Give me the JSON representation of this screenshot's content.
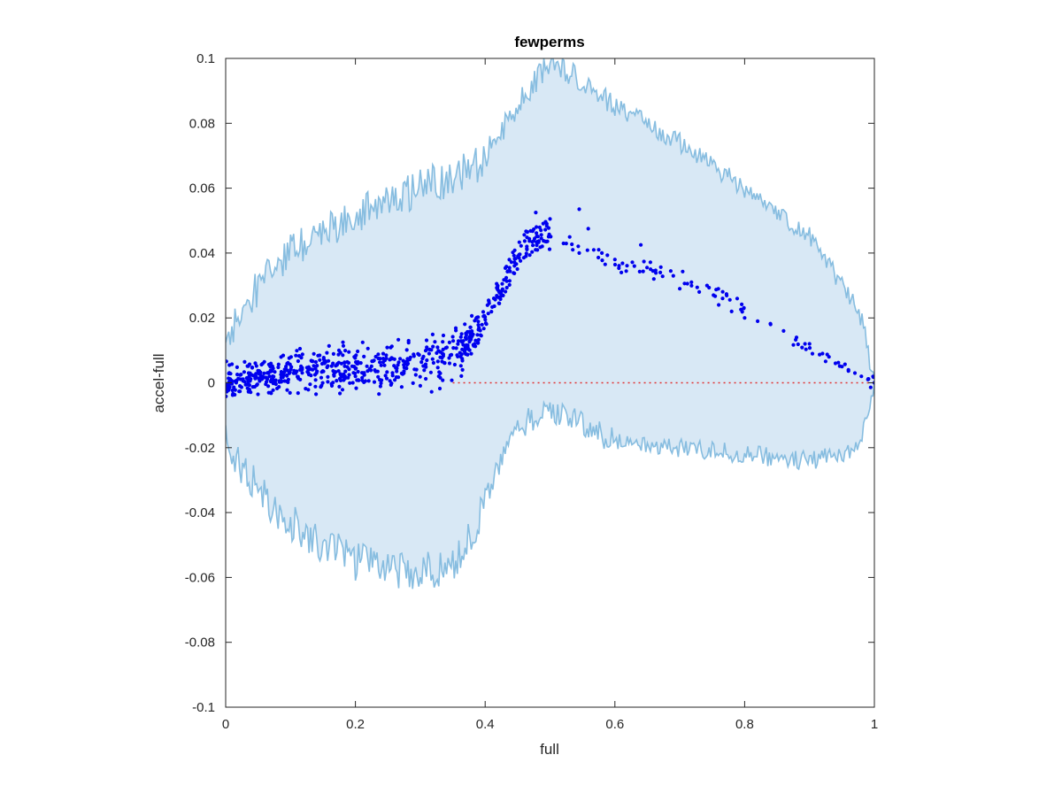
{
  "chart_data": {
    "type": "scatter",
    "title": "fewperms",
    "xlabel": "full",
    "ylabel": "accel-full",
    "xlim": [
      0,
      1
    ],
    "ylim": [
      -0.1,
      0.1
    ],
    "xticks": [
      0,
      0.2,
      0.4,
      0.6,
      0.8,
      1
    ],
    "xtick_labels": [
      "0",
      "0.2",
      "0.4",
      "0.6",
      "0.8",
      "1"
    ],
    "yticks": [
      0.1,
      0.08,
      0.06,
      0.04,
      0.02,
      0,
      -0.02,
      -0.04,
      -0.06,
      -0.08,
      -0.1
    ],
    "ytick_labels": [
      "0.1",
      "0.08",
      "0.06",
      "0.04",
      "0.02",
      "0",
      "-0.02",
      "-0.04",
      "-0.06",
      "-0.08",
      "-0.1"
    ],
    "grid": false,
    "colors": {
      "band_fill": "#d8e8f5",
      "band_edge": "#87bde0",
      "points": "#0000ee",
      "reference_line": "#e03030",
      "axes": "#262626"
    },
    "envelope": {
      "x": [
        0.0,
        0.02,
        0.05,
        0.08,
        0.1,
        0.15,
        0.2,
        0.25,
        0.3,
        0.33,
        0.35,
        0.38,
        0.4,
        0.42,
        0.45,
        0.48,
        0.5,
        0.52,
        0.55,
        0.58,
        0.6,
        0.65,
        0.7,
        0.75,
        0.8,
        0.85,
        0.9,
        0.95,
        0.98,
        1.0
      ],
      "upper": [
        0.012,
        0.02,
        0.029,
        0.036,
        0.04,
        0.046,
        0.052,
        0.056,
        0.06,
        0.062,
        0.063,
        0.066,
        0.07,
        0.076,
        0.085,
        0.094,
        0.099,
        0.097,
        0.093,
        0.088,
        0.085,
        0.08,
        0.074,
        0.067,
        0.06,
        0.052,
        0.045,
        0.03,
        0.02,
        0.0
      ],
      "lower": [
        -0.018,
        -0.025,
        -0.033,
        -0.039,
        -0.043,
        -0.05,
        -0.055,
        -0.057,
        -0.058,
        -0.057,
        -0.055,
        -0.048,
        -0.036,
        -0.025,
        -0.014,
        -0.01,
        -0.009,
        -0.01,
        -0.013,
        -0.016,
        -0.018,
        -0.019,
        -0.02,
        -0.021,
        -0.022,
        -0.023,
        -0.024,
        -0.022,
        -0.018,
        0.0
      ]
    },
    "reference_line": {
      "y": 0,
      "x_start": 0.35,
      "x_end": 1
    },
    "series": [
      {
        "trend": {
          "x": [
            0.0,
            0.05,
            0.1,
            0.15,
            0.2,
            0.25,
            0.3,
            0.33,
            0.35,
            0.37,
            0.39,
            0.41,
            0.43,
            0.45,
            0.47,
            0.49,
            0.51,
            0.53,
            0.55,
            0.58,
            0.6,
            0.63,
            0.66,
            0.7,
            0.73,
            0.76,
            0.8,
            0.84,
            0.88,
            0.92,
            0.95,
            0.98,
            1.0
          ],
          "y": [
            0.0,
            0.002,
            0.003,
            0.004,
            0.005,
            0.005,
            0.006,
            0.007,
            0.009,
            0.012,
            0.017,
            0.024,
            0.032,
            0.039,
            0.044,
            0.046,
            0.045,
            0.043,
            0.041,
            0.039,
            0.037,
            0.036,
            0.035,
            0.033,
            0.031,
            0.028,
            0.023,
            0.018,
            0.013,
            0.008,
            0.005,
            0.002,
            0.0
          ]
        },
        "points": [
          [
            0.545,
            0.0535
          ],
          [
            0.478,
            0.0525
          ],
          [
            0.5,
            0.0505
          ],
          [
            0.559,
            0.0475
          ],
          [
            0.495,
            0.049
          ],
          [
            0.535,
            0.041
          ],
          [
            0.545,
            0.04
          ],
          [
            0.575,
            0.041
          ],
          [
            0.58,
            0.04
          ],
          [
            0.585,
            0.0365
          ],
          [
            0.6,
            0.038
          ],
          [
            0.61,
            0.034
          ],
          [
            0.63,
            0.036
          ],
          [
            0.64,
            0.0425
          ],
          [
            0.655,
            0.035
          ],
          [
            0.66,
            0.032
          ],
          [
            0.67,
            0.034
          ],
          [
            0.69,
            0.033
          ],
          [
            0.7,
            0.029
          ],
          [
            0.718,
            0.031
          ],
          [
            0.73,
            0.028
          ],
          [
            0.742,
            0.03
          ],
          [
            0.752,
            0.027
          ],
          [
            0.76,
            0.024
          ],
          [
            0.78,
            0.022
          ],
          [
            0.8,
            0.02
          ],
          [
            0.82,
            0.019
          ],
          [
            0.84,
            0.018
          ],
          [
            0.86,
            0.016
          ],
          [
            0.88,
            0.014
          ],
          [
            0.9,
            0.012
          ],
          [
            0.92,
            0.009
          ],
          [
            0.93,
            0.008
          ],
          [
            0.94,
            0.006
          ],
          [
            0.95,
            0.005
          ],
          [
            0.96,
            0.004
          ],
          [
            0.97,
            0.003
          ],
          [
            0.98,
            0.002
          ],
          [
            0.99,
            0.001
          ],
          [
            1.0,
            0.0
          ]
        ]
      }
    ]
  }
}
